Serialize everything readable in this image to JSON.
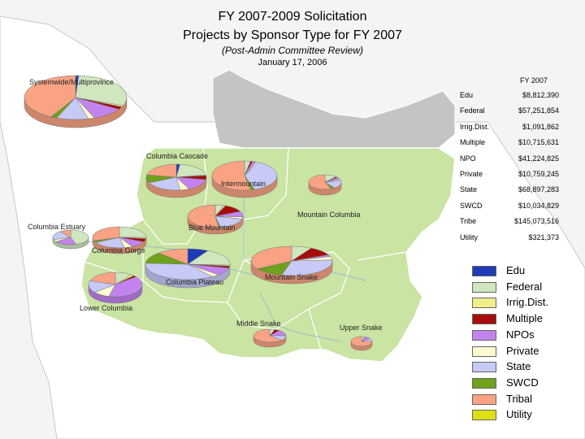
{
  "title": "FY 2007-2009 Solicitation",
  "subtitle": "Projects by Sponsor Type for FY 2007",
  "note": "(Post-Admin Committee Review)",
  "date": "January 17, 2006",
  "table": {
    "header": "FY 2007",
    "rows": [
      {
        "label": "Edu",
        "value": "$8,812,390"
      },
      {
        "label": "Federal",
        "value": "$57,251,854"
      },
      {
        "label": "Irrig.Dist.",
        "value": "$1,091,862"
      },
      {
        "label": "Multiple",
        "value": "$10,715,631"
      },
      {
        "label": "NPO",
        "value": "$41,224,825"
      },
      {
        "label": "Private",
        "value": "$10,759,245"
      },
      {
        "label": "State",
        "value": "$68,897,283"
      },
      {
        "label": "SWCD",
        "value": "$10,034,829"
      },
      {
        "label": "Tribe",
        "value": "$145,073,516"
      },
      {
        "label": "Utility",
        "value": "$321,373"
      }
    ]
  },
  "legend": [
    {
      "label": "Edu",
      "color": "#1f3cb4"
    },
    {
      "label": "Federal",
      "color": "#cfe6bf"
    },
    {
      "label": "Irrig.Dist.",
      "color": "#f0ee8a"
    },
    {
      "label": "Multiple",
      "color": "#a50d0d"
    },
    {
      "label": "NPOs",
      "color": "#c383ef"
    },
    {
      "label": "Private",
      "color": "#fdfbcf"
    },
    {
      "label": "State",
      "color": "#c7c9f6"
    },
    {
      "label": "SWCD",
      "color": "#6fa11c"
    },
    {
      "label": "Tribal",
      "color": "#f9a384"
    },
    {
      "label": "Utility",
      "color": "#dfe014"
    }
  ],
  "provinces": [
    {
      "name": "Systemwide/Multiprovince",
      "shares": [
        1,
        30,
        1,
        2,
        10,
        2,
        10,
        2,
        42,
        0
      ]
    },
    {
      "name": "Columbia Cascade",
      "shares": [
        2,
        20,
        1,
        5,
        15,
        5,
        20,
        10,
        22,
        0
      ]
    },
    {
      "name": "Intermountain",
      "shares": [
        0,
        3,
        0,
        1,
        2,
        1,
        38,
        2,
        53,
        0
      ]
    },
    {
      "name": "Mountain Columbia",
      "shares": [
        0,
        12,
        0,
        2,
        5,
        3,
        18,
        4,
        56,
        0
      ]
    },
    {
      "name": "Columbia Estuary",
      "shares": [
        0,
        45,
        0,
        0,
        20,
        5,
        20,
        0,
        10,
        0
      ]
    },
    {
      "name": "Blue Mountain",
      "shares": [
        0,
        5,
        1,
        12,
        8,
        3,
        18,
        1,
        52,
        0
      ]
    },
    {
      "name": "Columbia Gorge",
      "shares": [
        0,
        25,
        2,
        5,
        10,
        5,
        20,
        3,
        30,
        0
      ]
    },
    {
      "name": "Columbia Plateau",
      "shares": [
        8,
        18,
        1,
        2,
        8,
        3,
        36,
        12,
        12,
        0
      ]
    },
    {
      "name": "Mountain Snake",
      "shares": [
        0,
        8,
        0,
        10,
        2,
        4,
        30,
        12,
        34,
        0
      ]
    },
    {
      "name": "Lower Columbia",
      "shares": [
        0,
        10,
        2,
        2,
        40,
        10,
        16,
        0,
        20,
        0
      ]
    },
    {
      "name": "Middle Snake",
      "shares": [
        0,
        5,
        0,
        5,
        15,
        0,
        12,
        0,
        63,
        0
      ]
    },
    {
      "name": "Upper Snake",
      "shares": [
        0,
        5,
        0,
        0,
        10,
        0,
        10,
        0,
        75,
        0
      ]
    }
  ]
}
